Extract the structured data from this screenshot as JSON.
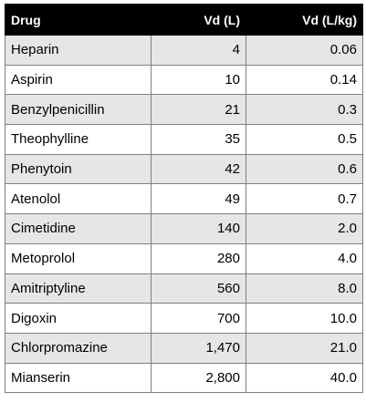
{
  "table": {
    "headers": {
      "drug": "Drug",
      "vd": "Vd (L)",
      "vd_per_kg": "Vd (L/kg)"
    },
    "rows": [
      {
        "drug": "Heparin",
        "vd": "4",
        "vd_per_kg": "0.06"
      },
      {
        "drug": "Aspirin",
        "vd": "10",
        "vd_per_kg": "0.14"
      },
      {
        "drug": "Benzylpenicillin",
        "vd": "21",
        "vd_per_kg": "0.3"
      },
      {
        "drug": "Theophylline",
        "vd": "35",
        "vd_per_kg": "0.5"
      },
      {
        "drug": "Phenytoin",
        "vd": "42",
        "vd_per_kg": "0.6"
      },
      {
        "drug": "Atenolol",
        "vd": "49",
        "vd_per_kg": "0.7"
      },
      {
        "drug": "Cimetidine",
        "vd": "140",
        "vd_per_kg": "2.0"
      },
      {
        "drug": "Metoprolol",
        "vd": "280",
        "vd_per_kg": "4.0"
      },
      {
        "drug": "Amitriptyline",
        "vd": "560",
        "vd_per_kg": "8.0"
      },
      {
        "drug": "Digoxin",
        "vd": "700",
        "vd_per_kg": "10.0"
      },
      {
        "drug": "Chlorpromazine",
        "vd": "1,470",
        "vd_per_kg": "21.0"
      },
      {
        "drug": "Mianserin",
        "vd": "2,800",
        "vd_per_kg": "40.0"
      }
    ]
  }
}
